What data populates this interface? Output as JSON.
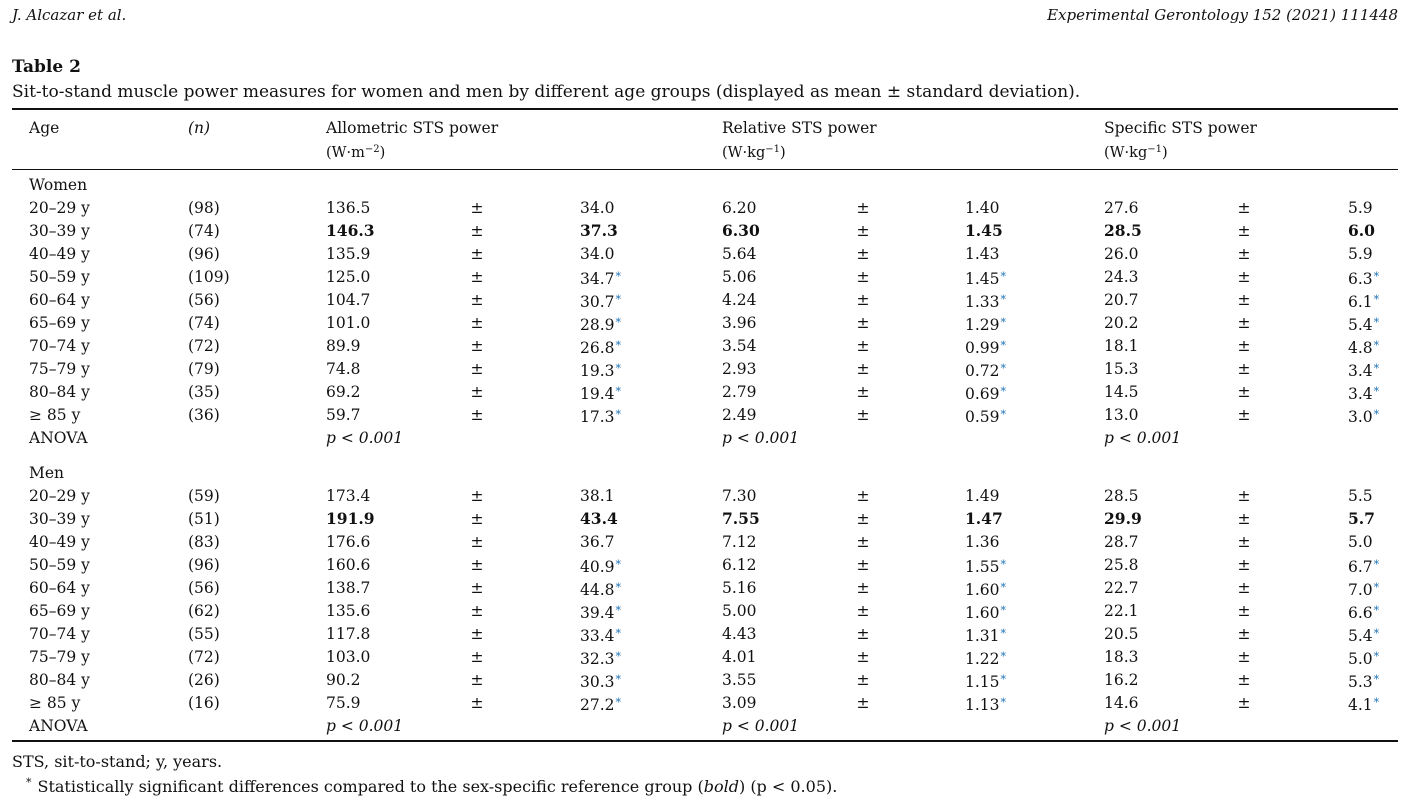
{
  "running_head": {
    "left": "J. Alcazar et al.",
    "right": "Experimental Gerontology 152 (2021) 111448"
  },
  "table": {
    "label": "Table 2",
    "caption": "Sit-to-stand muscle power measures for women and men by different age groups (displayed as mean ± standard deviation).",
    "columns": {
      "age": "Age",
      "n": "(n)",
      "allometric": "Allometric STS power",
      "allometric_unit_pre": "(W·m",
      "allometric_unit_exp": "−2",
      "allometric_unit_post": ")",
      "relative": "Relative STS power",
      "relative_unit_pre": "(W·kg",
      "relative_unit_exp": "−1",
      "relative_unit_post": ")",
      "specific": "Specific STS power",
      "specific_unit_pre": "(W·kg",
      "specific_unit_exp": "−1",
      "specific_unit_post": ")"
    },
    "pm_symbol": "±",
    "sig_symbol": "*",
    "anova_p": "p < 0.001",
    "groups": [
      {
        "name": "Women",
        "anova_label": "ANOVA",
        "rows": [
          {
            "age": "20–29 y",
            "n": "(98)",
            "am": "136.5",
            "asd": "34.0",
            "rm": "6.20",
            "rsd": "1.40",
            "sm": "27.6",
            "ssd": "5.9",
            "sig": false,
            "ref": false
          },
          {
            "age": "30–39 y",
            "n": "(74)",
            "am": "146.3",
            "asd": "37.3",
            "rm": "6.30",
            "rsd": "1.45",
            "sm": "28.5",
            "ssd": "6.0",
            "sig": false,
            "ref": true
          },
          {
            "age": "40–49 y",
            "n": "(96)",
            "am": "135.9",
            "asd": "34.0",
            "rm": "5.64",
            "rsd": "1.43",
            "sm": "26.0",
            "ssd": "5.9",
            "sig": false,
            "ref": false
          },
          {
            "age": "50–59 y",
            "n": "(109)",
            "am": "125.0",
            "asd": "34.7",
            "rm": "5.06",
            "rsd": "1.45",
            "sm": "24.3",
            "ssd": "6.3",
            "sig": true,
            "ref": false
          },
          {
            "age": "60–64 y",
            "n": "(56)",
            "am": "104.7",
            "asd": "30.7",
            "rm": "4.24",
            "rsd": "1.33",
            "sm": "20.7",
            "ssd": "6.1",
            "sig": true,
            "ref": false
          },
          {
            "age": "65–69 y",
            "n": "(74)",
            "am": "101.0",
            "asd": "28.9",
            "rm": "3.96",
            "rsd": "1.29",
            "sm": "20.2",
            "ssd": "5.4",
            "sig": true,
            "ref": false
          },
          {
            "age": "70–74 y",
            "n": "(72)",
            "am": "89.9",
            "asd": "26.8",
            "rm": "3.54",
            "rsd": "0.99",
            "sm": "18.1",
            "ssd": "4.8",
            "sig": true,
            "ref": false
          },
          {
            "age": "75–79 y",
            "n": "(79)",
            "am": "74.8",
            "asd": "19.3",
            "rm": "2.93",
            "rsd": "0.72",
            "sm": "15.3",
            "ssd": "3.4",
            "sig": true,
            "ref": false
          },
          {
            "age": "80–84 y",
            "n": "(35)",
            "am": "69.2",
            "asd": "19.4",
            "rm": "2.79",
            "rsd": "0.69",
            "sm": "14.5",
            "ssd": "3.4",
            "sig": true,
            "ref": false
          },
          {
            "age": "≥ 85 y",
            "n": "(36)",
            "am": "59.7",
            "asd": "17.3",
            "rm": "2.49",
            "rsd": "0.59",
            "sm": "13.0",
            "ssd": "3.0",
            "sig": true,
            "ref": false
          }
        ]
      },
      {
        "name": "Men",
        "anova_label": "ANOVA",
        "rows": [
          {
            "age": "20–29 y",
            "n": "(59)",
            "am": "173.4",
            "asd": "38.1",
            "rm": "7.30",
            "rsd": "1.49",
            "sm": "28.5",
            "ssd": "5.5",
            "sig": false,
            "ref": false
          },
          {
            "age": "30–39 y",
            "n": "(51)",
            "am": "191.9",
            "asd": "43.4",
            "rm": "7.55",
            "rsd": "1.47",
            "sm": "29.9",
            "ssd": "5.7",
            "sig": false,
            "ref": true
          },
          {
            "age": "40–49 y",
            "n": "(83)",
            "am": "176.6",
            "asd": "36.7",
            "rm": "7.12",
            "rsd": "1.36",
            "sm": "28.7",
            "ssd": "5.0",
            "sig": false,
            "ref": false
          },
          {
            "age": "50–59 y",
            "n": "(96)",
            "am": "160.6",
            "asd": "40.9",
            "rm": "6.12",
            "rsd": "1.55",
            "sm": "25.8",
            "ssd": "6.7",
            "sig": true,
            "ref": false
          },
          {
            "age": "60–64 y",
            "n": "(56)",
            "am": "138.7",
            "asd": "44.8",
            "rm": "5.16",
            "rsd": "1.60",
            "sm": "22.7",
            "ssd": "7.0",
            "sig": true,
            "ref": false
          },
          {
            "age": "65–69 y",
            "n": "(62)",
            "am": "135.6",
            "asd": "39.4",
            "rm": "5.00",
            "rsd": "1.60",
            "sm": "22.1",
            "ssd": "6.6",
            "sig": true,
            "ref": false
          },
          {
            "age": "70–74 y",
            "n": "(55)",
            "am": "117.8",
            "asd": "33.4",
            "rm": "4.43",
            "rsd": "1.31",
            "sm": "20.5",
            "ssd": "5.4",
            "sig": true,
            "ref": false
          },
          {
            "age": "75–79 y",
            "n": "(72)",
            "am": "103.0",
            "asd": "32.3",
            "rm": "4.01",
            "rsd": "1.22",
            "sm": "18.3",
            "ssd": "5.0",
            "sig": true,
            "ref": false
          },
          {
            "age": "80–84 y",
            "n": "(26)",
            "am": "90.2",
            "asd": "30.3",
            "rm": "3.55",
            "rsd": "1.15",
            "sm": "16.2",
            "ssd": "5.3",
            "sig": true,
            "ref": false
          },
          {
            "age": "≥ 85 y",
            "n": "(16)",
            "am": "75.9",
            "asd": "27.2",
            "rm": "3.09",
            "rsd": "1.13",
            "sm": "14.6",
            "ssd": "4.1",
            "sig": true,
            "ref": false
          }
        ]
      }
    ]
  },
  "footnotes": {
    "abbreviations": "STS, sit-to-stand; y, years.",
    "sig_mark": "*",
    "sig_text_pre": "Statistically significant differences compared to the sex-specific reference group (",
    "sig_text_bold_word": "bold",
    "sig_text_post": ") (p < 0.05)."
  }
}
